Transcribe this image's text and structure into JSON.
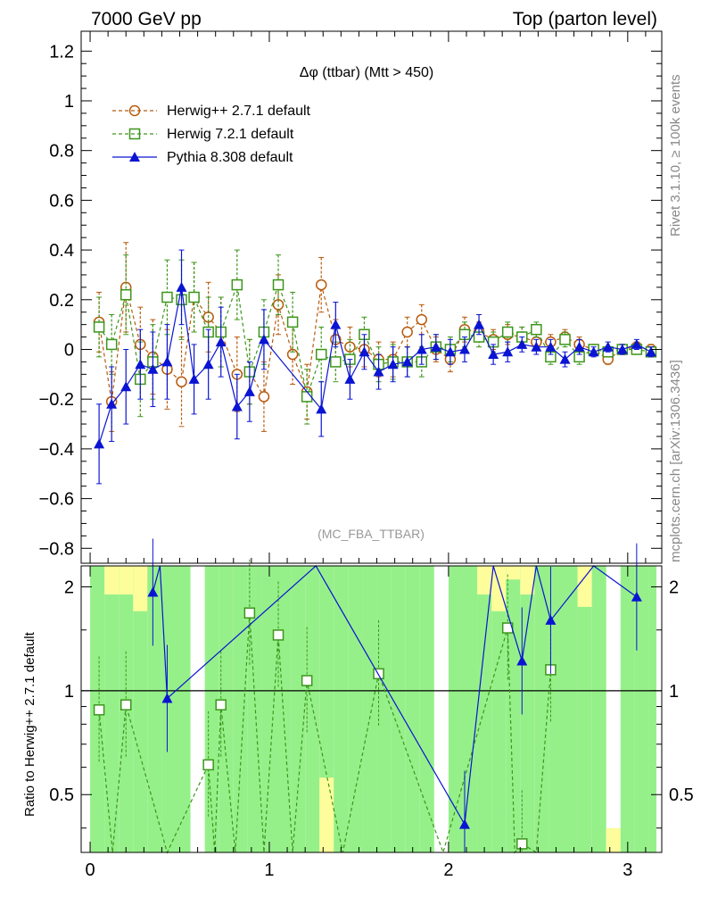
{
  "header": {
    "left": "7000 GeV pp",
    "right": "Top (parton level)"
  },
  "side_labels": {
    "top": "Rivet 3.1.10, ≥ 100k events",
    "bottom": "mcplots.cern.ch [arXiv:1306.3436]"
  },
  "watermark": "(MC_FBA_TTBAR)",
  "colors": {
    "herwigpp": "#b85a0c",
    "herwig7": "#3c961a",
    "pythia": "#0a14d2",
    "band_yellow": "#fdfd9c",
    "band_green": "#96f08a"
  },
  "chart_data": [
    {
      "type": "line",
      "title": "Δφ (ttbar) (Mtt > 450)",
      "xlabel": "",
      "ylabel": "",
      "xlim": [
        -0.05,
        3.19
      ],
      "ylim": [
        -0.86,
        1.28
      ],
      "yticks": [
        "−0.8",
        "−0.6",
        "−0.4",
        "−0.2",
        "0",
        "0.2",
        "0.4",
        "0.6",
        "0.8",
        "1",
        "1.2"
      ],
      "ytick_values": [
        -0.8,
        -0.6,
        -0.4,
        -0.2,
        0,
        0.2,
        0.4,
        0.6,
        0.8,
        1,
        1.2
      ],
      "legend_position": "top-left",
      "series": [
        {
          "name": "Herwig++ 2.7.1 default",
          "marker": "open-circle",
          "x": [
            0.05,
            0.12,
            0.2,
            0.28,
            0.35,
            0.43,
            0.51,
            0.58,
            0.66,
            0.73,
            0.82,
            0.89,
            0.97,
            1.05,
            1.13,
            1.21,
            1.29,
            1.37,
            1.45,
            1.53,
            1.61,
            1.69,
            1.77,
            1.85,
            1.93,
            2.01,
            2.09,
            2.17,
            2.25,
            2.33,
            2.41,
            2.49,
            2.57,
            2.65,
            2.73,
            2.81,
            2.89,
            2.97,
            3.05,
            3.13
          ],
          "y": [
            0.11,
            -0.21,
            0.25,
            0.02,
            -0.03,
            -0.08,
            -0.13,
            0.21,
            0.13,
            0.07,
            -0.1,
            -0.09,
            -0.19,
            0.18,
            -0.02,
            -0.17,
            0.26,
            0.04,
            0.01,
            0.0,
            -0.04,
            -0.04,
            0.07,
            0.12,
            0.0,
            -0.04,
            0.08,
            0.07,
            0.04,
            0.06,
            0.05,
            0.03,
            0.03,
            0.05,
            0.02,
            0.0,
            -0.04,
            0.0,
            0.01,
            0.0
          ],
          "err": [
            0.12,
            0.12,
            0.18,
            0.15,
            0.15,
            0.16,
            0.18,
            0.14,
            0.14,
            0.14,
            0.15,
            0.13,
            0.14,
            0.12,
            0.12,
            0.11,
            0.11,
            0.08,
            0.08,
            0.07,
            0.07,
            0.07,
            0.06,
            0.06,
            0.05,
            0.05,
            0.05,
            0.04,
            0.04,
            0.04,
            0.04,
            0.03,
            0.03,
            0.03,
            0.03,
            0.02,
            0.02,
            0.02,
            0.02,
            0.02
          ]
        },
        {
          "name": "Herwig 7.2.1 default",
          "marker": "open-square",
          "x": [
            0.05,
            0.12,
            0.2,
            0.28,
            0.35,
            0.43,
            0.51,
            0.58,
            0.66,
            0.73,
            0.82,
            0.89,
            0.97,
            1.05,
            1.13,
            1.21,
            1.29,
            1.37,
            1.45,
            1.53,
            1.61,
            1.69,
            1.77,
            1.85,
            1.93,
            2.01,
            2.09,
            2.17,
            2.25,
            2.33,
            2.41,
            2.49,
            2.57,
            2.65,
            2.73,
            2.81,
            2.89,
            2.97,
            3.05,
            3.13
          ],
          "y": [
            0.09,
            0.02,
            0.22,
            -0.12,
            -0.05,
            0.21,
            0.2,
            0.21,
            0.07,
            0.07,
            0.26,
            -0.09,
            0.07,
            0.26,
            0.11,
            -0.19,
            -0.02,
            -0.05,
            -0.04,
            0.06,
            -0.06,
            -0.05,
            -0.05,
            -0.05,
            0.01,
            0.0,
            0.06,
            0.05,
            0.03,
            0.07,
            0.05,
            0.08,
            -0.03,
            0.04,
            -0.03,
            0.0,
            -0.01,
            0.0,
            0.0,
            -0.01
          ],
          "err": [
            0.12,
            0.12,
            0.16,
            0.15,
            0.15,
            0.15,
            0.16,
            0.14,
            0.14,
            0.14,
            0.14,
            0.13,
            0.13,
            0.12,
            0.12,
            0.11,
            0.11,
            0.08,
            0.08,
            0.07,
            0.07,
            0.07,
            0.06,
            0.06,
            0.05,
            0.05,
            0.05,
            0.04,
            0.04,
            0.04,
            0.04,
            0.03,
            0.03,
            0.03,
            0.03,
            0.02,
            0.02,
            0.02,
            0.02,
            0.02
          ]
        },
        {
          "name": "Pythia 8.308 default",
          "marker": "filled-triangle",
          "x": [
            0.05,
            0.12,
            0.2,
            0.28,
            0.35,
            0.43,
            0.51,
            0.58,
            0.66,
            0.73,
            0.82,
            0.89,
            0.97,
            1.29,
            1.37,
            1.45,
            1.53,
            1.61,
            1.69,
            1.77,
            1.85,
            1.93,
            2.01,
            2.09,
            2.17,
            2.25,
            2.33,
            2.41,
            2.49,
            2.57,
            2.65,
            2.73,
            2.81,
            2.89,
            2.97,
            3.05,
            3.13
          ],
          "y": [
            -0.38,
            -0.22,
            -0.15,
            -0.06,
            -0.08,
            -0.05,
            0.25,
            -0.12,
            -0.06,
            0.03,
            -0.23,
            -0.17,
            0.04,
            -0.24,
            0.1,
            -0.12,
            -0.01,
            -0.09,
            -0.06,
            -0.05,
            0.0,
            0.01,
            -0.01,
            0.0,
            0.1,
            -0.02,
            -0.01,
            0.02,
            0.01,
            0.01,
            -0.04,
            0.01,
            -0.01,
            0.01,
            0.0,
            0.02,
            -0.01
          ],
          "err": [
            0.16,
            0.15,
            0.15,
            0.14,
            0.15,
            0.15,
            0.15,
            0.14,
            0.14,
            0.14,
            0.13,
            0.12,
            0.12,
            0.11,
            0.09,
            0.08,
            0.07,
            0.07,
            0.07,
            0.06,
            0.06,
            0.05,
            0.05,
            0.05,
            0.04,
            0.04,
            0.04,
            0.03,
            0.03,
            0.03,
            0.03,
            0.03,
            0.02,
            0.02,
            0.02,
            0.02,
            0.02
          ]
        }
      ]
    },
    {
      "type": "line",
      "title": "",
      "xlabel": "",
      "ylabel": "Ratio to Herwig++ 2.7.1 default",
      "xlim": [
        -0.05,
        3.19
      ],
      "ylim": [
        0.34,
        2.3
      ],
      "yscale": "log",
      "xticks": [
        "0",
        "1",
        "2",
        "3"
      ],
      "xtick_values": [
        0,
        1,
        2,
        3
      ],
      "yticks": [
        "0.5",
        "1",
        "2"
      ],
      "ytick_values": [
        0.5,
        1,
        2
      ],
      "reference_line": 1,
      "bands": {
        "x_edges": [
          0.0,
          0.08,
          0.16,
          0.24,
          0.32,
          0.4,
          0.48,
          0.56,
          0.64,
          0.72,
          0.8,
          0.88,
          0.96,
          1.04,
          1.12,
          1.2,
          1.28,
          1.36,
          1.44,
          1.52,
          1.6,
          1.68,
          1.76,
          1.84,
          1.92,
          2.0,
          2.08,
          2.16,
          2.24,
          2.32,
          2.4,
          2.48,
          2.56,
          2.64,
          2.72,
          2.8,
          2.88,
          2.96,
          3.04,
          3.12
        ],
        "green_hi": [
          2.3,
          2.3,
          2.3,
          2.3,
          2.3,
          2.3,
          2.3,
          0,
          2.3,
          2.3,
          2.3,
          2.3,
          2.3,
          2.3,
          2.3,
          2.3,
          2.3,
          2.3,
          2.3,
          2.3,
          2.3,
          2.3,
          2.3,
          2.3,
          0,
          2.3,
          2.3,
          2.3,
          2.3,
          2.3,
          2.3,
          2.3,
          2.3,
          2.3,
          2.3,
          2.3,
          0,
          2.3,
          2.3,
          2.3
        ],
        "yellow_lo": [
          0,
          1.9,
          1.9,
          1.7,
          0,
          0,
          0,
          0,
          0,
          0,
          0,
          0,
          0,
          0,
          0,
          0,
          0.56,
          0,
          0,
          0,
          0,
          0,
          0,
          0,
          0,
          0,
          0,
          1.9,
          1.7,
          2.1,
          1.9,
          0,
          0,
          0,
          1.75,
          0,
          0.4,
          0,
          0,
          0
        ]
      },
      "series": [
        {
          "name": "Herwig 7.2.1 default",
          "x": [
            0.05,
            0.2,
            0.66,
            0.73,
            0.89,
            1.05,
            1.21,
            1.61,
            2.33,
            2.41,
            2.57
          ],
          "y": [
            0.88,
            0.91,
            0.61,
            0.91,
            1.68,
            1.45,
            1.07,
            1.12,
            1.52,
            0.36,
            1.15
          ]
        },
        {
          "name": "Pythia 8.308 default",
          "x": [
            0.35,
            0.43,
            2.09,
            2.41,
            2.57,
            3.05
          ],
          "y": [
            1.93,
            0.95,
            0.41,
            1.22,
            1.6,
            1.87
          ]
        }
      ]
    }
  ]
}
